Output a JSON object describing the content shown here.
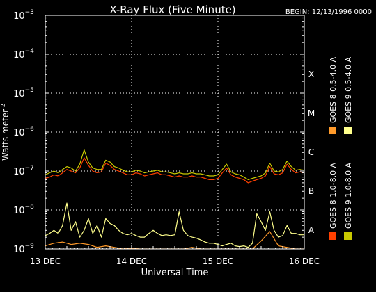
{
  "chart_data": {
    "type": "line",
    "title": "X-Ray Flux (Five Minute)",
    "begin_label": "BEGIN: 12/13/1996 0000",
    "ylabel": "Watts meter",
    "ylabel_sup": "-2",
    "xlabel": "Universal Time",
    "yscale": "log",
    "ylim": [
      1e-09,
      0.001
    ],
    "xlim": [
      0,
      3
    ],
    "x_unit": "days since 13 DEC 1996 00:00 UT",
    "x_ticks": [
      {
        "value": 0,
        "label": "13 DEC"
      },
      {
        "value": 1,
        "label": "14 DEC"
      },
      {
        "value": 2,
        "label": "15 DEC"
      },
      {
        "value": 3,
        "label": "16 DEC"
      }
    ],
    "y_ticks": [
      {
        "exp": -3,
        "base": "10",
        "sup": "−3"
      },
      {
        "exp": -4,
        "base": "10",
        "sup": "−4"
      },
      {
        "exp": -5,
        "base": "10",
        "sup": "−5"
      },
      {
        "exp": -6,
        "base": "10",
        "sup": "−6"
      },
      {
        "exp": -7,
        "base": "10",
        "sup": "−7"
      },
      {
        "exp": -8,
        "base": "10",
        "sup": "−8"
      },
      {
        "exp": -9,
        "base": "10",
        "sup": "−9"
      }
    ],
    "flare_classes": [
      {
        "label": "X",
        "exp": -4
      },
      {
        "label": "M",
        "exp": -5
      },
      {
        "label": "C",
        "exp": -6
      },
      {
        "label": "B",
        "exp": -7
      },
      {
        "label": "A",
        "exp": -8
      }
    ],
    "grid": {
      "horizontal_dotted": true,
      "vertical_dotted_at_days": true
    },
    "legend_placement": "right, vertical",
    "series": [
      {
        "name": "GOES 8  1.0-8.0 A",
        "color": "#ff4000",
        "x": [
          0.0,
          0.05,
          0.1,
          0.15,
          0.2,
          0.25,
          0.3,
          0.35,
          0.4,
          0.45,
          0.5,
          0.55,
          0.6,
          0.65,
          0.7,
          0.75,
          0.8,
          0.85,
          0.9,
          0.95,
          1.0,
          1.05,
          1.1,
          1.15,
          1.2,
          1.25,
          1.3,
          1.35,
          1.4,
          1.45,
          1.5,
          1.55,
          1.6,
          1.65,
          1.7,
          1.75,
          1.8,
          1.85,
          1.9,
          1.95,
          2.0,
          2.05,
          2.1,
          2.15,
          2.2,
          2.25,
          2.3,
          2.35,
          2.4,
          2.45,
          2.5,
          2.55,
          2.6,
          2.65,
          2.7,
          2.75,
          2.8,
          2.85,
          2.9,
          2.95,
          3.0
        ],
        "values": [
          6.5e-08,
          7e-08,
          8e-08,
          7.5e-08,
          9e-08,
          1.1e-07,
          1e-07,
          9e-08,
          1.2e-07,
          2.2e-07,
          1.4e-07,
          1e-07,
          9e-08,
          9.5e-08,
          1.6e-07,
          1.4e-07,
          1.1e-07,
          1e-07,
          9e-08,
          8e-08,
          8e-08,
          9e-08,
          8.5e-08,
          7.5e-08,
          8e-08,
          8.5e-08,
          9e-08,
          8e-08,
          8e-08,
          7.5e-08,
          7e-08,
          7.5e-08,
          7e-08,
          7e-08,
          7.5e-08,
          7e-08,
          7e-08,
          6.5e-08,
          6e-08,
          6e-08,
          6.5e-08,
          9e-08,
          1.2e-07,
          8e-08,
          7e-08,
          6.5e-08,
          6e-08,
          5e-08,
          5.5e-08,
          6e-08,
          6.5e-08,
          7.5e-08,
          1.3e-07,
          8.5e-08,
          8e-08,
          9e-08,
          1.5e-07,
          1.1e-07,
          9e-08,
          9.5e-08,
          9e-08
        ]
      },
      {
        "name": "GOES 8  0.5-4.0 A",
        "color": "#ff9a2a",
        "x": [
          0.0,
          0.1,
          0.2,
          0.3,
          0.4,
          0.5,
          0.6,
          0.7,
          0.8,
          0.9,
          1.0,
          1.1,
          1.2,
          1.3,
          1.4,
          1.5,
          1.6,
          1.7,
          1.8,
          1.9,
          2.0,
          2.1,
          2.2,
          2.3,
          2.4,
          2.5,
          2.6,
          2.7,
          2.8,
          2.9,
          3.0
        ],
        "values": [
          1.2e-09,
          1.4e-09,
          1.5e-09,
          1.3e-09,
          1.4e-09,
          1.3e-09,
          1.1e-09,
          1.2e-09,
          1.1e-09,
          1e-09,
          1.05e-09,
          1e-09,
          1e-09,
          1e-09,
          1e-09,
          1e-09,
          1e-09,
          1.1e-09,
          1e-09,
          1e-09,
          1e-09,
          1e-09,
          1e-09,
          1e-09,
          1e-09,
          1.6e-09,
          2.8e-09,
          1.2e-09,
          1.1e-09,
          1e-09,
          1e-09
        ]
      },
      {
        "name": "GOES 9  1.0-8.0 A",
        "color": "#c8c800",
        "x": [
          0.0,
          0.05,
          0.1,
          0.15,
          0.2,
          0.25,
          0.3,
          0.35,
          0.4,
          0.45,
          0.5,
          0.55,
          0.6,
          0.65,
          0.7,
          0.75,
          0.8,
          0.85,
          0.9,
          0.95,
          1.0,
          1.05,
          1.1,
          1.15,
          1.2,
          1.25,
          1.3,
          1.35,
          1.4,
          1.45,
          1.5,
          1.55,
          1.6,
          1.65,
          1.7,
          1.75,
          1.8,
          1.85,
          1.9,
          1.95,
          2.0,
          2.05,
          2.1,
          2.15,
          2.2,
          2.25,
          2.3,
          2.35,
          2.4,
          2.45,
          2.5,
          2.55,
          2.6,
          2.65,
          2.7,
          2.75,
          2.8,
          2.85,
          2.9,
          2.95,
          3.0
        ],
        "values": [
          8e-08,
          9e-08,
          1e-07,
          9e-08,
          1.1e-07,
          1.3e-07,
          1.2e-07,
          1e-07,
          1.5e-07,
          3.5e-07,
          1.7e-07,
          1.2e-07,
          1.1e-07,
          1.1e-07,
          1.9e-07,
          1.7e-07,
          1.3e-07,
          1.2e-07,
          1.05e-07,
          9.5e-08,
          9.5e-08,
          1.05e-07,
          1e-07,
          9e-08,
          9.5e-08,
          1e-07,
          1.05e-07,
          9.5e-08,
          9.5e-08,
          9e-08,
          8.5e-08,
          9e-08,
          8.5e-08,
          8.5e-08,
          9e-08,
          8.5e-08,
          8.5e-08,
          8e-08,
          7.5e-08,
          7.5e-08,
          8e-08,
          1.1e-07,
          1.5e-07,
          9.5e-08,
          8.5e-08,
          8e-08,
          7e-08,
          6e-08,
          6.5e-08,
          7e-08,
          7.5e-08,
          9e-08,
          1.6e-07,
          1e-07,
          9.5e-08,
          1.1e-07,
          1.8e-07,
          1.3e-07,
          1.05e-07,
          1.1e-07,
          1.05e-07
        ]
      },
      {
        "name": "GOES 9  0.5-4.0 A",
        "color": "#ffff8c",
        "x": [
          0.0,
          0.05,
          0.1,
          0.15,
          0.2,
          0.25,
          0.3,
          0.35,
          0.4,
          0.45,
          0.5,
          0.55,
          0.6,
          0.65,
          0.7,
          0.75,
          0.8,
          0.85,
          0.9,
          0.95,
          1.0,
          1.05,
          1.1,
          1.15,
          1.2,
          1.25,
          1.3,
          1.35,
          1.4,
          1.45,
          1.5,
          1.55,
          1.6,
          1.65,
          1.7,
          1.75,
          1.8,
          1.85,
          1.9,
          1.95,
          2.0,
          2.05,
          2.1,
          2.15,
          2.2,
          2.25,
          2.3,
          2.35,
          2.4,
          2.45,
          2.5,
          2.55,
          2.6,
          2.65,
          2.7,
          2.75,
          2.8,
          2.85,
          2.9,
          2.95,
          3.0
        ],
        "values": [
          2.2e-09,
          2.5e-09,
          3e-09,
          2.5e-09,
          4e-09,
          1.5e-08,
          3e-09,
          5e-09,
          2e-09,
          3e-09,
          6e-09,
          2.5e-09,
          4e-09,
          2e-09,
          6e-09,
          4.5e-09,
          4e-09,
          3e-09,
          2.5e-09,
          2.3e-09,
          2.5e-09,
          2.2e-09,
          2e-09,
          2e-09,
          2.5e-09,
          3e-09,
          2.5e-09,
          2.2e-09,
          2.3e-09,
          2.2e-09,
          2.3e-09,
          9e-09,
          3e-09,
          2.2e-09,
          2e-09,
          1.9e-09,
          1.7e-09,
          1.5e-09,
          1.4e-09,
          1.4e-09,
          1.3e-09,
          1.2e-09,
          1.3e-09,
          1.4e-09,
          1.2e-09,
          1.15e-09,
          1.2e-09,
          1.1e-09,
          1.4e-09,
          8e-09,
          5e-09,
          3e-09,
          9e-09,
          3e-09,
          2e-09,
          2.2e-09,
          4e-09,
          2.5e-09,
          2.5e-09,
          2.3e-09,
          2.3e-09
        ]
      }
    ]
  }
}
